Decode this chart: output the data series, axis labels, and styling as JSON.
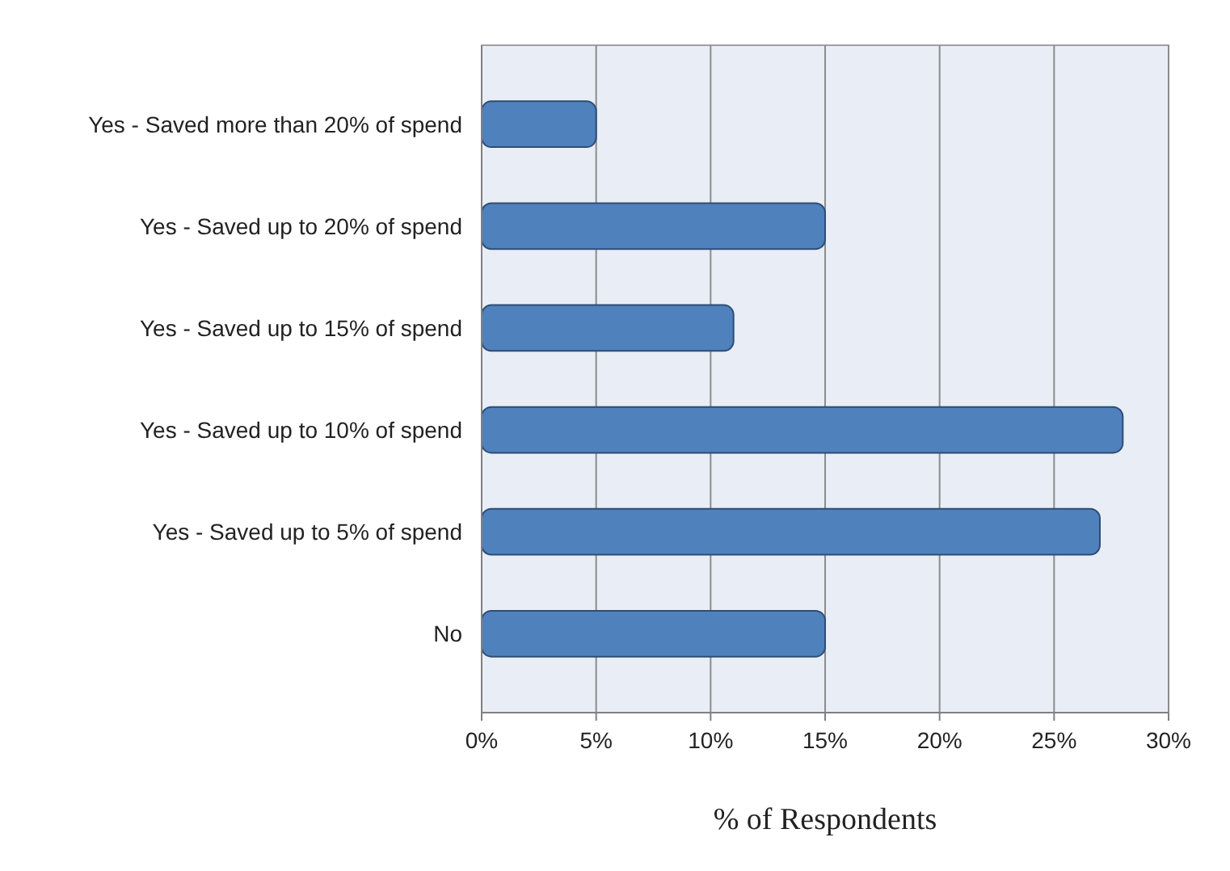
{
  "chart_data": {
    "type": "bar",
    "orientation": "horizontal",
    "xlabel": "% of Respondents",
    "categories": [
      "Yes - Saved more than 20% of spend",
      "Yes - Saved up to 20% of spend",
      "Yes - Saved up to 15% of spend",
      "Yes - Saved up to 10% of spend",
      "Yes - Saved up to 5% of spend",
      "No"
    ],
    "values": [
      5,
      15,
      11,
      28,
      27,
      15
    ],
    "color": "#4f81bd",
    "xlim": [
      0,
      30
    ],
    "xticks": [
      {
        "value": 0,
        "label": "0%"
      },
      {
        "value": 5,
        "label": "5%"
      },
      {
        "value": 10,
        "label": "10%"
      },
      {
        "value": 15,
        "label": "15%"
      },
      {
        "value": 20,
        "label": "20%"
      },
      {
        "value": 25,
        "label": "25%"
      },
      {
        "value": 30,
        "label": "30%"
      }
    ],
    "grid": "x"
  }
}
